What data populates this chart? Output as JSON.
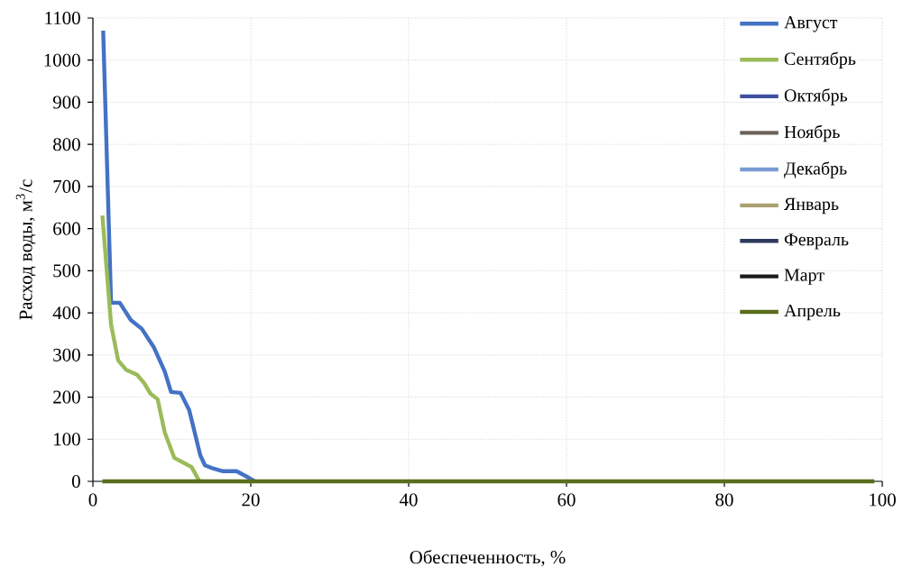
{
  "chart_data": {
    "type": "line",
    "xlabel": "Обеспеченность, %",
    "ylabel": "Расход воды, м$^{3}$/с",
    "xlim": [
      0,
      100
    ],
    "ylim": [
      0,
      1100
    ],
    "xticks": [
      0,
      20,
      40,
      60,
      80,
      100
    ],
    "yticks": [
      0,
      100,
      200,
      300,
      400,
      500,
      600,
      700,
      800,
      900,
      1000,
      1100
    ],
    "grid": true,
    "legend": "top right",
    "line_style": "solid",
    "series": [
      {
        "name": "Август",
        "color": "#4472c4",
        "x": [
          1.3,
          2.3,
          3.4,
          4.8,
          6.2,
          7.7,
          9.1,
          9.9,
          11.1,
          12.2,
          13.6,
          14.2,
          15.3,
          16.5,
          18.2,
          19.7,
          20.5
        ],
        "values": [
          1070,
          424,
          424,
          383,
          362,
          319,
          261,
          212,
          210,
          169,
          62,
          38,
          30,
          24,
          24,
          9,
          0
        ]
      },
      {
        "name": "Сентябрь",
        "color": "#9bbb59",
        "x": [
          1.2,
          2.3,
          3.2,
          4.2,
          5.6,
          6.5,
          7.3,
          8.2,
          9.1,
          10.3,
          11.4,
          12.5,
          13.5
        ],
        "values": [
          631,
          372,
          287,
          265,
          253,
          233,
          208,
          195,
          116,
          56,
          45,
          34,
          0
        ]
      },
      {
        "name": "Октябрь",
        "color": "#3f51a0"
      },
      {
        "name": "Ноябрь",
        "color": "#6b625a"
      },
      {
        "name": "Декабрь",
        "color": "#7a9bd4"
      },
      {
        "name": "Январь",
        "color": "#a9a070"
      },
      {
        "name": "Февраль",
        "color": "#2f3a5c"
      },
      {
        "name": "Март",
        "color": "#1a1a1a"
      },
      {
        "name": "Апрель",
        "color": "#5a6e1e",
        "x": [
          1.2,
          99
        ],
        "values": [
          0,
          0
        ]
      }
    ]
  }
}
